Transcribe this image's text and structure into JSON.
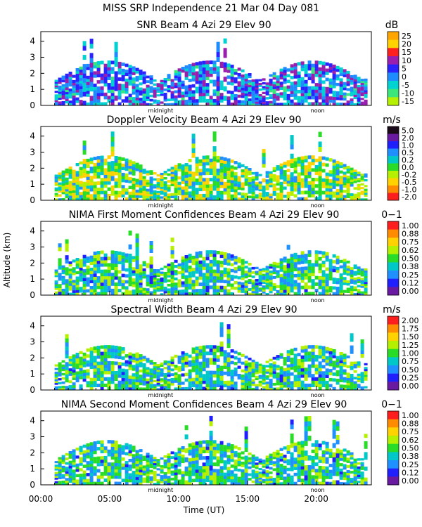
{
  "figure": {
    "title_line1": "MISS SRP Independence  21 Mar 04 Day 081",
    "ylabel": "Altitude (km)",
    "xlabel": "Time (UT)",
    "x_ticks": [
      "00:00",
      "05:00",
      "10:00",
      "15:00",
      "20:00"
    ],
    "markers": {
      "midnight": "midnight",
      "noon": "noon"
    }
  },
  "chart_data": [
    {
      "type": "heatmap",
      "title": "SNR Beam 4 Azi  29 Elev 90",
      "unit": "dB",
      "y_ticks": [
        "0",
        "1",
        "2",
        "3",
        "4"
      ],
      "ylim": [
        0,
        4.6
      ],
      "xlim_hours": [
        0,
        24
      ],
      "data_extent_hours": [
        1.0,
        23.5
      ],
      "colorbar_labels": [
        "25",
        "20",
        "15",
        "10",
        "5",
        "0",
        "-5",
        "-10",
        "-15"
      ],
      "colorbar_colors": [
        "#ffa500",
        "#ffd200",
        "#ff2020",
        "#9a1fae",
        "#2a22ff",
        "#1e8cff",
        "#00d2d2",
        "#3ce67a",
        "#b4f000"
      ]
    },
    {
      "type": "heatmap",
      "title": "Doppler Velocity Beam 4 Azi  29 Elev 90",
      "unit": "m/s",
      "y_ticks": [
        "0",
        "1",
        "2",
        "3",
        "4"
      ],
      "ylim": [
        0,
        4.6
      ],
      "xlim_hours": [
        0,
        24
      ],
      "data_extent_hours": [
        1.0,
        23.5
      ],
      "colorbar_labels": [
        "5.0",
        "2.0",
        "1.0",
        "0.5",
        "0.2",
        "0.0",
        "-0.2",
        "-0.5",
        "-1.0",
        "-2.0"
      ],
      "colorbar_colors": [
        "#1a0a1a",
        "#6a1aa0",
        "#2020ff",
        "#1e90ff",
        "#00c8c8",
        "#28dc28",
        "#b4f000",
        "#ffd200",
        "#ff8c00",
        "#ff1e1e"
      ]
    },
    {
      "type": "heatmap",
      "title": "NIMA First Moment Confidences Beam 4 Azi  29 Elev 90",
      "unit": "0−1",
      "y_ticks": [
        "0",
        "1",
        "2",
        "3",
        "4"
      ],
      "ylim": [
        0,
        4.6
      ],
      "xlim_hours": [
        0,
        24
      ],
      "data_extent_hours": [
        1.0,
        23.5
      ],
      "colorbar_labels": [
        "1.00",
        "0.88",
        "0.75",
        "0.62",
        "0.50",
        "0.38",
        "0.25",
        "0.12",
        "0.00"
      ],
      "colorbar_colors": [
        "#ff1e1e",
        "#ff8c00",
        "#ffd200",
        "#b4f000",
        "#28dc28",
        "#00c8c8",
        "#1e90ff",
        "#2020ff",
        "#6a1aa0"
      ]
    },
    {
      "type": "heatmap",
      "title": "Spectral Width Beam 4 Azi  29 Elev 90",
      "unit": "m/s",
      "y_ticks": [
        "0",
        "1",
        "2",
        "3",
        "4"
      ],
      "ylim": [
        0,
        4.6
      ],
      "xlim_hours": [
        0,
        24
      ],
      "data_extent_hours": [
        1.0,
        23.5
      ],
      "colorbar_labels": [
        "2.00",
        "1.75",
        "1.50",
        "1.25",
        "1.00",
        "0.75",
        "0.50",
        "0.25",
        "0.00"
      ],
      "colorbar_colors": [
        "#ff1e1e",
        "#ff8c00",
        "#ffd200",
        "#b4f000",
        "#28dc28",
        "#00c8c8",
        "#1e90ff",
        "#2020ff",
        "#6a1aa0"
      ]
    },
    {
      "type": "heatmap",
      "title": "NIMA Second Moment Confidences Beam 4 Azi  29 Elev 90",
      "unit": "0−1",
      "y_ticks": [
        "0",
        "1",
        "2",
        "3",
        "4"
      ],
      "ylim": [
        0,
        4.6
      ],
      "xlim_hours": [
        0,
        24
      ],
      "data_extent_hours": [
        1.0,
        23.5
      ],
      "colorbar_labels": [
        "1.00",
        "0.88",
        "0.75",
        "0.62",
        "0.50",
        "0.38",
        "0.25",
        "0.12",
        "0.00"
      ],
      "colorbar_colors": [
        "#ff1e1e",
        "#ff8c00",
        "#ffd200",
        "#b4f000",
        "#28dc28",
        "#00c8c8",
        "#1e90ff",
        "#2020ff",
        "#6a1aa0"
      ]
    }
  ]
}
